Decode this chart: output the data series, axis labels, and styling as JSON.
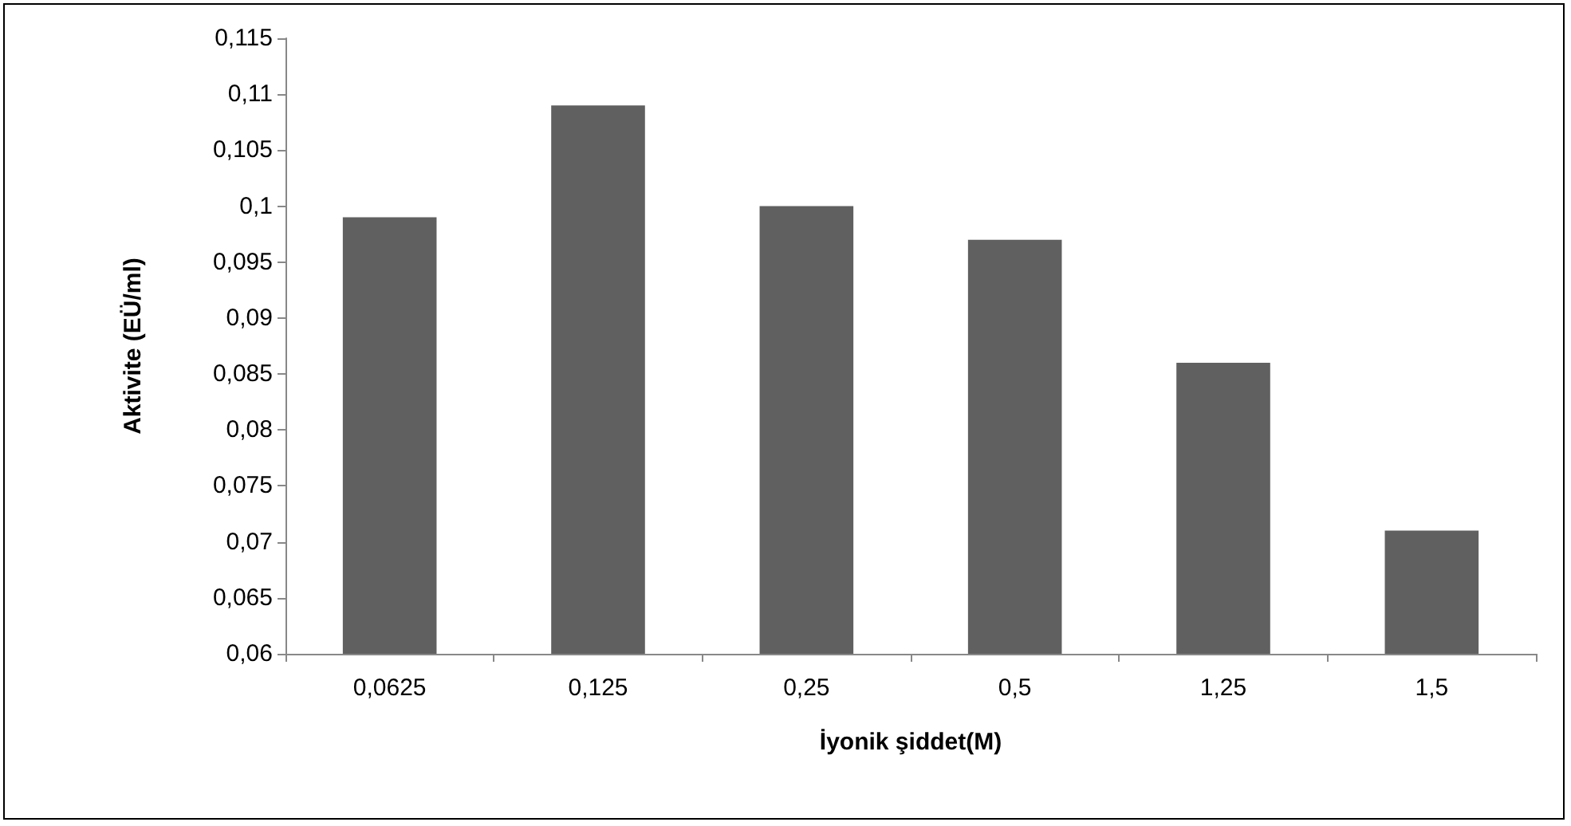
{
  "chart_data": {
    "type": "bar",
    "xlabel": "İyonik şiddet(M)",
    "ylabel": "Aktivite (EÜ/ml)",
    "categories": [
      "0,0625",
      "0,125",
      "0,25",
      "0,5",
      "1,25",
      "1,5"
    ],
    "values": [
      0.099,
      0.109,
      0.1,
      0.097,
      0.086,
      0.071
    ],
    "color": "#606060",
    "ylim": [
      0.06,
      0.115
    ],
    "yticks": [
      {
        "value": 0.06,
        "label": "0,06"
      },
      {
        "value": 0.065,
        "label": "0,065"
      },
      {
        "value": 0.07,
        "label": "0,07"
      },
      {
        "value": 0.075,
        "label": "0,075"
      },
      {
        "value": 0.08,
        "label": "0,08"
      },
      {
        "value": 0.085,
        "label": "0,085"
      },
      {
        "value": 0.09,
        "label": "0,09"
      },
      {
        "value": 0.095,
        "label": "0,095"
      },
      {
        "value": 0.1,
        "label": "0,1"
      },
      {
        "value": 0.105,
        "label": "0,105"
      },
      {
        "value": 0.11,
        "label": "0,11"
      },
      {
        "value": 0.115,
        "label": "0,115"
      }
    ],
    "grid": false
  }
}
